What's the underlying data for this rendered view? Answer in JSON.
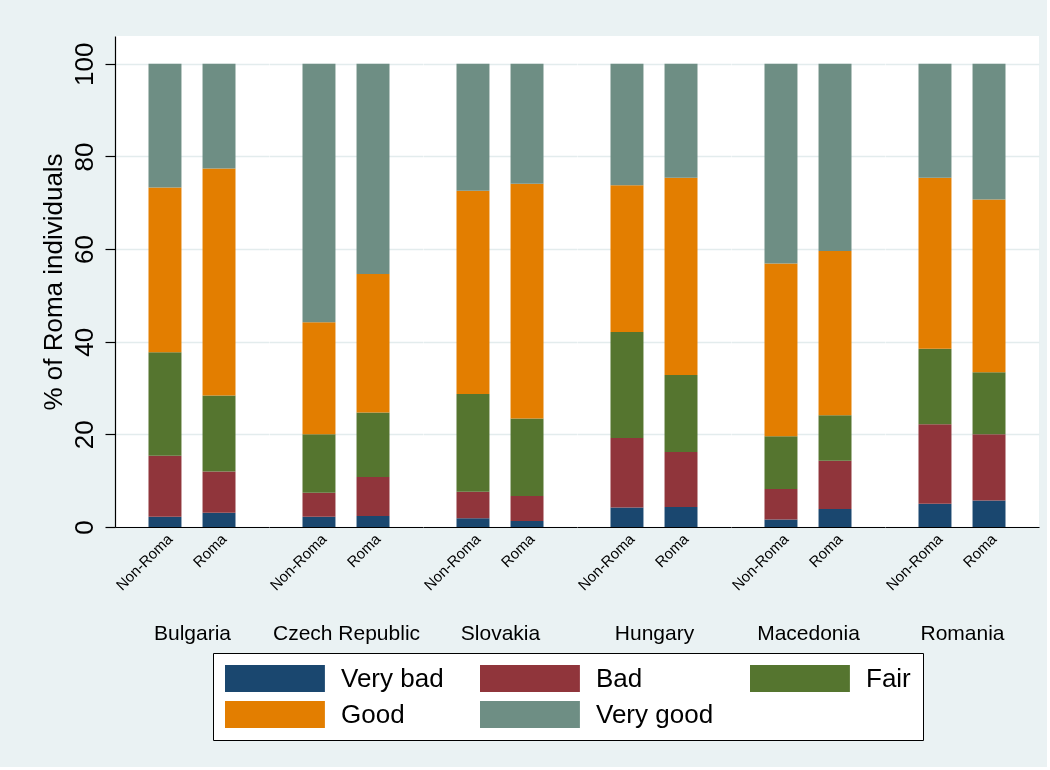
{
  "chart_data": [
    {
      "type": "bar",
      "stacked": true,
      "categories": [
        "Non-Roma",
        "Roma"
      ],
      "xlabel": "Bulgaria",
      "ylabel": "% of Roma individuals",
      "ylim": [
        0,
        106
      ],
      "yticks": [
        0,
        20,
        40,
        60,
        80,
        100
      ],
      "grid": "y",
      "legend": "bottom",
      "series": [
        {
          "name": "Very bad",
          "color": "#1a476f",
          "values": [
            2.2,
            3.1
          ]
        },
        {
          "name": "Bad",
          "color": "#90353b",
          "values": [
            13.2,
            8.9
          ]
        },
        {
          "name": "Fair",
          "color": "#55752f",
          "values": [
            22.3,
            16.4
          ]
        },
        {
          "name": "Good",
          "color": "#e37e00",
          "values": [
            35.6,
            49.0
          ]
        },
        {
          "name": "Very good",
          "color": "#6e8e84",
          "values": [
            26.7,
            22.6
          ]
        }
      ]
    },
    {
      "type": "bar",
      "stacked": true,
      "categories": [
        "Non-Roma",
        "Roma"
      ],
      "xlabel": "Czech Republic",
      "ylim": [
        0,
        106
      ],
      "yticks": [
        0,
        20,
        40,
        60,
        80,
        100
      ],
      "grid": "y",
      "legend": "bottom",
      "tick_labels": "x",
      "series": [
        {
          "name": "Very bad",
          "color": "#1a476f",
          "values": [
            2.2,
            2.4
          ]
        },
        {
          "name": "Bad",
          "color": "#90353b",
          "values": [
            5.2,
            8.4
          ]
        },
        {
          "name": "Fair",
          "color": "#55752f",
          "values": [
            12.6,
            13.9
          ]
        },
        {
          "name": "Good",
          "color": "#e37e00",
          "values": [
            24.2,
            29.9
          ]
        },
        {
          "name": "Very good",
          "color": "#6e8e84",
          "values": [
            55.8,
            45.4
          ]
        }
      ]
    },
    {
      "type": "bar",
      "stacked": true,
      "categories": [
        "Non-Roma",
        "Roma"
      ],
      "xlabel": "Slovakia",
      "ylim": [
        0,
        106
      ],
      "yticks": [
        0,
        20,
        40,
        60,
        80,
        100
      ],
      "grid": "y",
      "legend": "bottom",
      "tick_labels": "x",
      "series": [
        {
          "name": "Very bad",
          "color": "#1a476f",
          "values": [
            1.9,
            1.3
          ]
        },
        {
          "name": "Bad",
          "color": "#90353b",
          "values": [
            5.7,
            5.4
          ]
        },
        {
          "name": "Fair",
          "color": "#55752f",
          "values": [
            21.1,
            16.7
          ]
        },
        {
          "name": "Good",
          "color": "#e37e00",
          "values": [
            43.9,
            50.7
          ]
        },
        {
          "name": "Very good",
          "color": "#6e8e84",
          "values": [
            27.4,
            25.9
          ]
        }
      ]
    },
    {
      "type": "bar",
      "stacked": true,
      "categories": [
        "Non-Roma",
        "Roma"
      ],
      "xlabel": "Hungary",
      "ylim": [
        0,
        106
      ],
      "yticks": [
        0,
        20,
        40,
        60,
        80,
        100
      ],
      "grid": "y",
      "legend": "bottom",
      "tick_labels": "x",
      "series": [
        {
          "name": "Very bad",
          "color": "#1a476f",
          "values": [
            4.2,
            4.3
          ]
        },
        {
          "name": "Bad",
          "color": "#90353b",
          "values": [
            15.0,
            11.9
          ]
        },
        {
          "name": "Fair",
          "color": "#55752f",
          "values": [
            22.9,
            16.6
          ]
        },
        {
          "name": "Good",
          "color": "#e37e00",
          "values": [
            31.7,
            42.6
          ]
        },
        {
          "name": "Very good",
          "color": "#6e8e84",
          "values": [
            26.2,
            24.6
          ]
        }
      ]
    },
    {
      "type": "bar",
      "stacked": true,
      "categories": [
        "Non-Roma",
        "Roma"
      ],
      "xlabel": "Macedonia",
      "ylim": [
        0,
        106
      ],
      "yticks": [
        0,
        20,
        40,
        60,
        80,
        100
      ],
      "grid": "y",
      "legend": "bottom",
      "tick_labels": "x",
      "series": [
        {
          "name": "Very bad",
          "color": "#1a476f",
          "values": [
            1.6,
            3.9
          ]
        },
        {
          "name": "Bad",
          "color": "#90353b",
          "values": [
            6.6,
            10.4
          ]
        },
        {
          "name": "Fair",
          "color": "#55752f",
          "values": [
            11.4,
            9.8
          ]
        },
        {
          "name": "Good",
          "color": "#e37e00",
          "values": [
            37.3,
            35.5
          ]
        },
        {
          "name": "Very good",
          "color": "#6e8e84",
          "values": [
            43.1,
            40.4
          ]
        }
      ]
    },
    {
      "type": "bar",
      "stacked": true,
      "categories": [
        "Non-Roma",
        "Roma"
      ],
      "xlabel": "Romania",
      "ylim": [
        0,
        106
      ],
      "yticks": [
        0,
        20,
        40,
        60,
        80,
        100
      ],
      "grid": "y",
      "legend": "bottom",
      "tick_labels": "x",
      "series": [
        {
          "name": "Very bad",
          "color": "#1a476f",
          "values": [
            5.0,
            5.7
          ]
        },
        {
          "name": "Bad",
          "color": "#90353b",
          "values": [
            17.2,
            14.3
          ]
        },
        {
          "name": "Fair",
          "color": "#55752f",
          "values": [
            16.3,
            13.4
          ]
        },
        {
          "name": "Good",
          "color": "#e37e00",
          "values": [
            36.9,
            37.3
          ]
        },
        {
          "name": "Very good",
          "color": "#6e8e84",
          "values": [
            24.6,
            29.3
          ]
        }
      ]
    }
  ]
}
